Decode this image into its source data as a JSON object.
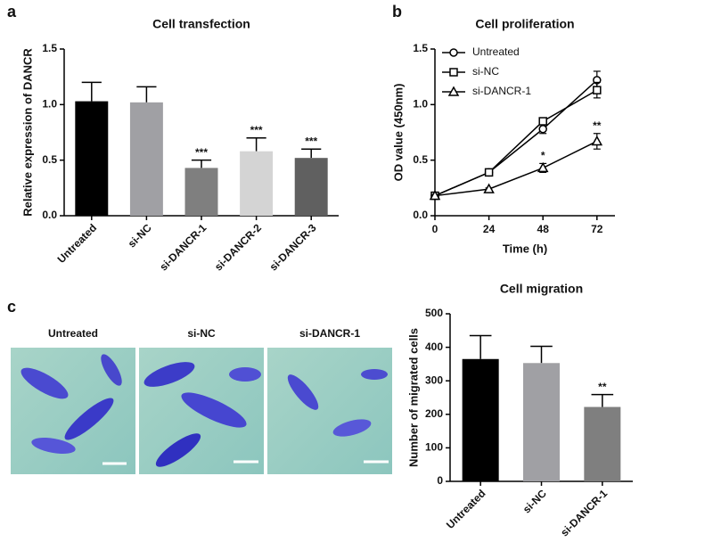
{
  "panels": [
    "a",
    "b",
    "c"
  ],
  "images": {
    "labels": [
      "Untreated",
      "si-NC",
      "si-DANCR-1"
    ]
  },
  "chart_data": [
    {
      "type": "bar",
      "title": "Cell transfection",
      "y_label": "Relative expression of DANCR",
      "categories": [
        "Untreated",
        "si-NC",
        "si-DANCR-1",
        "si-DANCR-2",
        "si-DANCR-3"
      ],
      "values": [
        1.03,
        1.02,
        0.43,
        0.58,
        0.52
      ],
      "errors": [
        0.17,
        0.14,
        0.07,
        0.12,
        0.08
      ],
      "colors": [
        "#000000",
        "#a0a0a4",
        "#7f7f7f",
        "#d4d4d4",
        "#606060"
      ],
      "annotations": [
        null,
        null,
        "***",
        "***",
        "***"
      ],
      "ylim": [
        0,
        1.5
      ],
      "yticks": [
        {
          "value": 0,
          "label": "0.0"
        },
        0.5,
        {
          "value": 1,
          "label": "1.0"
        },
        1.5
      ]
    },
    {
      "type": "line",
      "title": "Cell proliferation",
      "x_label": "Time (h)",
      "y_label": "OD value (450nm)",
      "x": [
        0,
        24,
        48,
        72
      ],
      "xlim": [
        0,
        80
      ],
      "xticks": [
        0,
        24,
        48,
        72
      ],
      "ylim": [
        0,
        1.5
      ],
      "yticks": [
        {
          "value": 0,
          "label": "0.0"
        },
        0.5,
        {
          "value": 1,
          "label": "1.0"
        },
        1.5
      ],
      "legend": "upper left",
      "series": [
        {
          "name": "Untreated",
          "color": "#000000",
          "marker": "circle",
          "values": [
            0.18,
            0.39,
            0.78,
            1.22
          ],
          "errors": [
            0.01,
            0.02,
            0.04,
            0.08
          ]
        },
        {
          "name": "si-NC",
          "color": "#000000",
          "marker": "square",
          "values": [
            0.18,
            0.39,
            0.85,
            1.13
          ],
          "errors": [
            0.01,
            0.02,
            0.03,
            0.07
          ]
        },
        {
          "name": "si-DANCR-1",
          "color": "#000000",
          "marker": "triangle",
          "values": [
            0.18,
            0.24,
            0.43,
            0.67
          ],
          "errors": [
            0.01,
            0.01,
            0.04,
            0.07
          ],
          "annotations": [
            null,
            null,
            "*",
            "**"
          ]
        }
      ]
    },
    {
      "type": "bar",
      "title": "Cell migration",
      "y_label": "Number of migrated cells",
      "categories": [
        "Untreated",
        "si-NC",
        "si-DANCR-1"
      ],
      "values": [
        365,
        353,
        222
      ],
      "errors": [
        70,
        50,
        37
      ],
      "colors": [
        "#000000",
        "#a0a0a4",
        "#7f7f7f"
      ],
      "annotations": [
        null,
        null,
        "**"
      ],
      "ylim": [
        0,
        500
      ],
      "yticks": [
        0,
        100,
        200,
        300,
        400,
        500
      ]
    }
  ]
}
